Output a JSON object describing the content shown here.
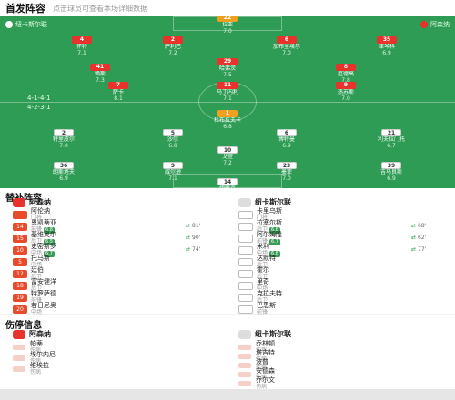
{
  "header": {
    "title": "首发阵容",
    "subtitle": "点击球员可查看本场详细数据"
  },
  "home": {
    "name": "阿森纳",
    "formation": "4-2-3-1",
    "color": "#e8322b"
  },
  "away": {
    "name": "纽卡斯尔联",
    "formation": "4-1-4-1",
    "color": "#ffffff"
  },
  "pitch": {
    "home_team_label": "阿森纳",
    "away_team_label": "纽卡斯尔联",
    "home_formation": "4-2-3-1",
    "away_formation": "4-1-4-1",
    "away_players": [
      {
        "no": "1",
        "name": "杜布拉夫卡",
        "rating": "6.8"
      },
      {
        "no": "2",
        "name": "特里皮尔",
        "rating": "7.0"
      },
      {
        "no": "5",
        "name": "沙尔",
        "rating": "6.8"
      },
      {
        "no": "6",
        "name": "博特曼",
        "rating": "6.9"
      },
      {
        "no": "21",
        "name": "利夫拉门托",
        "rating": "6.7"
      },
      {
        "no": "36",
        "name": "朗斯塔夫",
        "rating": "6.9"
      },
      {
        "no": "9",
        "name": "威尔逊",
        "rating": "7.1"
      },
      {
        "no": "23",
        "name": "墨菲",
        "rating": "7.0"
      },
      {
        "no": "39",
        "name": "吉马良斯",
        "rating": "6.9"
      },
      {
        "no": "10",
        "name": "戈登",
        "rating": "7.2"
      },
      {
        "no": "14",
        "name": "伊萨克",
        "rating": "6.8"
      }
    ],
    "home_players": [
      {
        "no": "22",
        "name": "拉亚",
        "rating": "7.0"
      },
      {
        "no": "4",
        "name": "怀特",
        "rating": "7.1"
      },
      {
        "no": "2",
        "name": "萨利巴",
        "rating": "7.2"
      },
      {
        "no": "6",
        "name": "加布里埃尔",
        "rating": "7.0"
      },
      {
        "no": "35",
        "name": "津琴科",
        "rating": "6.9"
      },
      {
        "no": "41",
        "name": "赖斯",
        "rating": "7.3"
      },
      {
        "no": "29",
        "name": "哈弗茨",
        "rating": "7.5"
      },
      {
        "no": "8",
        "name": "厄德高",
        "rating": "7.8"
      },
      {
        "no": "7",
        "name": "萨卡",
        "rating": "8.1"
      },
      {
        "no": "11",
        "name": "马丁内利",
        "rating": "7.1"
      },
      {
        "no": "9",
        "name": "热苏斯",
        "rating": "7.0"
      }
    ]
  },
  "subs": {
    "title": "替补阵容",
    "home_title": "阿森纳",
    "away_title": "纽卡斯尔联",
    "home": [
      {
        "no": "",
        "name": "阿伦纳",
        "pos": "门将",
        "rating": "",
        "min": ""
      },
      {
        "no": "14",
        "name": "恩凯蒂亚",
        "pos": "前锋",
        "rating": "6.8",
        "min": "81'"
      },
      {
        "no": "15",
        "name": "基维奥尔",
        "pos": "后卫",
        "rating": "6.5",
        "min": "90'"
      },
      {
        "no": "10",
        "name": "史密斯罗",
        "pos": "中场",
        "rating": "6.7",
        "min": "74'"
      },
      {
        "no": "5",
        "name": "托马斯",
        "pos": "中场",
        "rating": "",
        "min": ""
      },
      {
        "no": "12",
        "name": "廷伯",
        "pos": "后卫",
        "rating": "",
        "min": ""
      },
      {
        "no": "18",
        "name": "富安健洋",
        "pos": "后卫",
        "rating": "",
        "min": ""
      },
      {
        "no": "19",
        "name": "特罗萨德",
        "pos": "前锋",
        "rating": "",
        "min": ""
      },
      {
        "no": "20",
        "name": "若日尼奥",
        "pos": "中场",
        "rating": "",
        "min": ""
      }
    ],
    "away": [
      {
        "no": "",
        "name": "卡里乌斯",
        "pos": "门将",
        "rating": "",
        "min": ""
      },
      {
        "no": "",
        "name": "拉塞尔斯",
        "pos": "后卫",
        "rating": "6.6",
        "min": "68'"
      },
      {
        "no": "",
        "name": "阿尔姆隆",
        "pos": "前锋",
        "rating": "6.7",
        "min": "62'"
      },
      {
        "no": "",
        "name": "米利",
        "pos": "中场",
        "rating": "6.8",
        "min": "77'"
      },
      {
        "no": "",
        "name": "达默特",
        "pos": "后卫",
        "rating": "",
        "min": ""
      },
      {
        "no": "",
        "name": "霍尔",
        "pos": "后卫",
        "rating": "",
        "min": ""
      },
      {
        "no": "",
        "name": "里奇",
        "pos": "中场",
        "rating": "",
        "min": ""
      },
      {
        "no": "",
        "name": "克拉夫特",
        "pos": "后卫",
        "rating": "",
        "min": ""
      },
      {
        "no": "",
        "name": "巴恩斯",
        "pos": "前锋",
        "rating": "",
        "min": ""
      }
    ]
  },
  "injuries": {
    "title": "伤停信息",
    "home_title": "阿森纳",
    "away_title": "纽卡斯尔联",
    "home": [
      {
        "name": "帕蒂",
        "reason": "伤病"
      },
      {
        "name": "埃尔内尼",
        "reason": "伤病"
      },
      {
        "name": "维埃拉",
        "reason": "伤病"
      }
    ],
    "away": [
      {
        "name": "乔林顿",
        "reason": "伤病"
      },
      {
        "name": "塔吉特",
        "reason": "伤病"
      },
      {
        "name": "波普",
        "reason": "伤病"
      },
      {
        "name": "安德森",
        "reason": "伤病"
      },
      {
        "name": "乔尔文",
        "reason": "伤病"
      }
    ]
  }
}
